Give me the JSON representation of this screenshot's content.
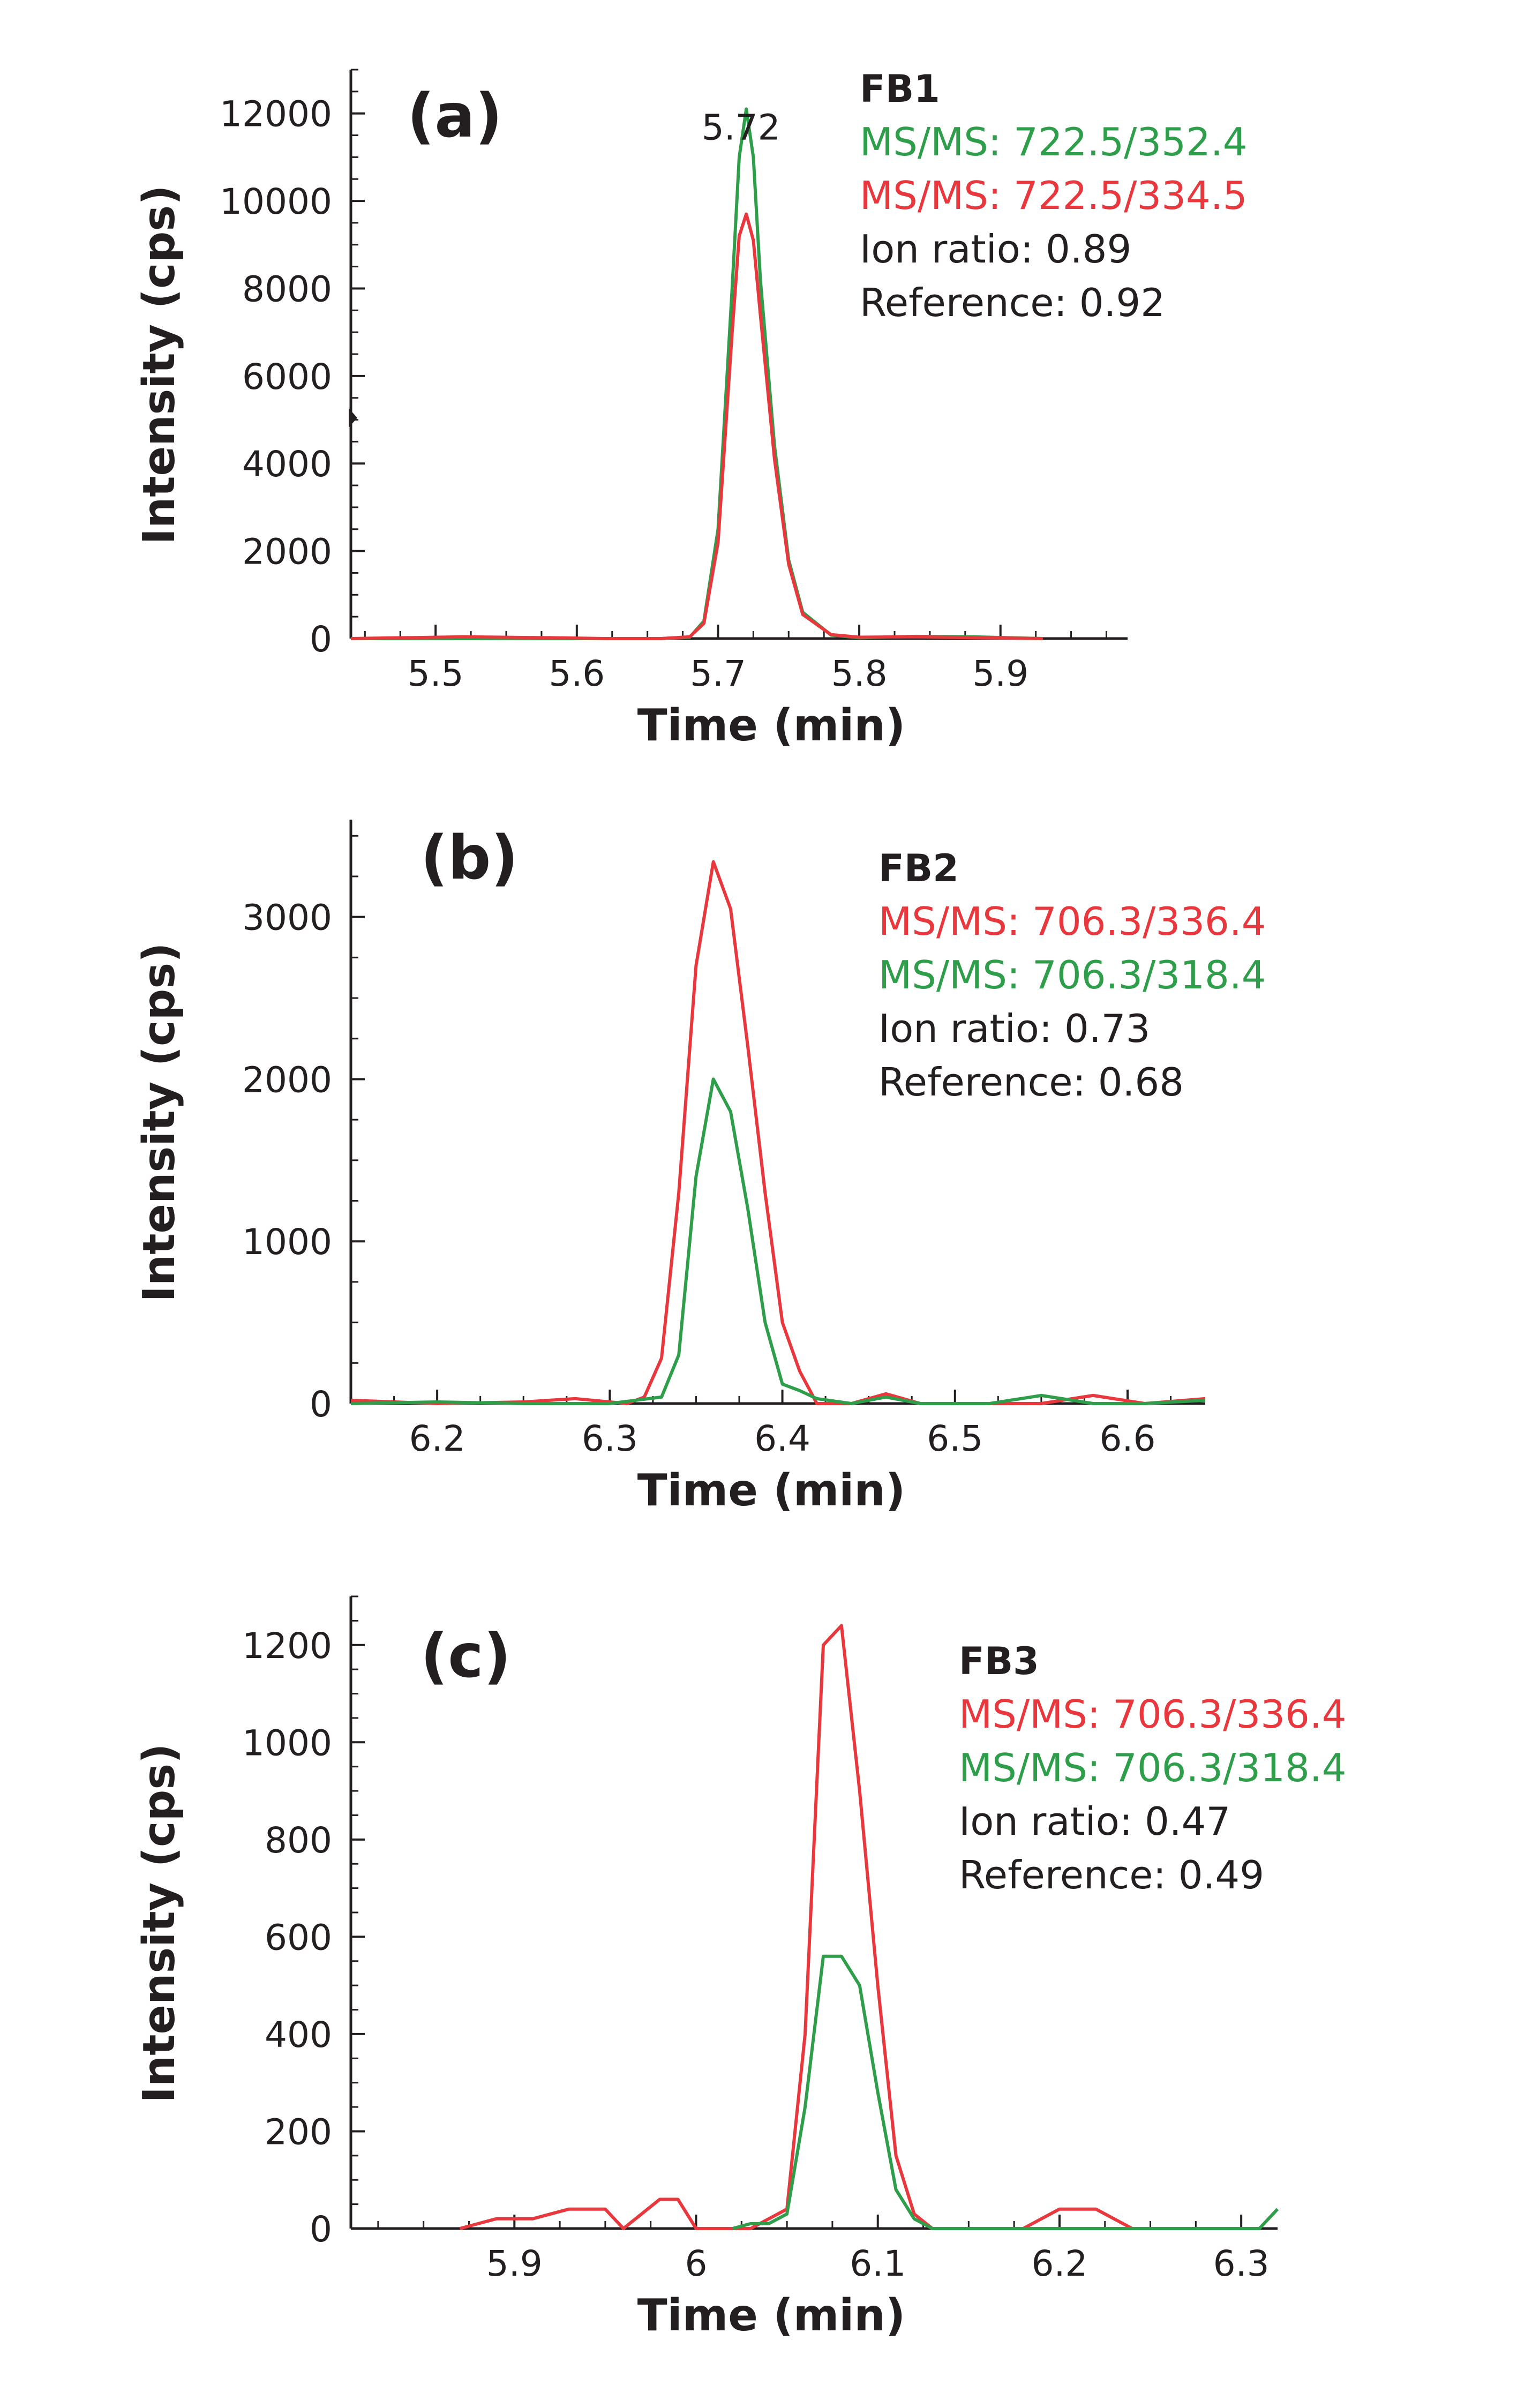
{
  "colors": {
    "green": "#2e9e4b",
    "red": "#e8383d",
    "axis": "#231f20",
    "text": "#231f20"
  },
  "chart_data": [
    {
      "type": "line",
      "panel_label": "(a)",
      "compound": "FB1",
      "xlabel": "Time (min)",
      "ylabel": "Intensity (cps)",
      "xlim": [
        5.44,
        5.99
      ],
      "ylim": [
        0,
        13000
      ],
      "xticks": [
        5.5,
        5.6,
        5.7,
        5.8,
        5.9
      ],
      "xtick_labels": [
        "5.5",
        "5.6",
        "5.7",
        "5.8",
        "5.9"
      ],
      "yticks": [
        0,
        2000,
        4000,
        6000,
        8000,
        10000,
        12000
      ],
      "ytick_labels": [
        "0",
        "2000",
        "4000",
        "6000",
        "8000",
        "10000",
        "12000"
      ],
      "peak_annotation": {
        "x": 5.72,
        "text": "5.72"
      },
      "legend": [
        "MS/MS: 722.5/352.4",
        "MS/MS: 722.5/334.5",
        "Ion ratio: 0.89",
        "Reference: 0.92"
      ],
      "series": [
        {
          "name": "MS/MS: 722.5/352.4",
          "color": "green",
          "x": [
            5.44,
            5.52,
            5.58,
            5.62,
            5.66,
            5.68,
            5.69,
            5.7,
            5.71,
            5.715,
            5.72,
            5.725,
            5.73,
            5.74,
            5.75,
            5.76,
            5.78,
            5.8,
            5.84,
            5.88,
            5.93
          ],
          "values": [
            0,
            0,
            0,
            0,
            0,
            30,
            400,
            2500,
            8000,
            11000,
            12100,
            11000,
            8200,
            4400,
            1800,
            600,
            80,
            20,
            50,
            40,
            0
          ]
        },
        {
          "name": "MS/MS: 722.5/334.5",
          "color": "red",
          "x": [
            5.44,
            5.52,
            5.58,
            5.62,
            5.66,
            5.68,
            5.69,
            5.7,
            5.71,
            5.715,
            5.72,
            5.725,
            5.73,
            5.74,
            5.75,
            5.76,
            5.78,
            5.8,
            5.84,
            5.88,
            5.93
          ],
          "values": [
            0,
            40,
            20,
            0,
            0,
            40,
            350,
            2200,
            7000,
            9200,
            9700,
            9100,
            7400,
            4100,
            1700,
            550,
            90,
            30,
            40,
            20,
            0
          ]
        }
      ]
    },
    {
      "type": "line",
      "panel_label": "(b)",
      "compound": "FB2",
      "xlabel": "Time (min)",
      "ylabel": "Intensity (cps)",
      "xlim": [
        6.15,
        6.645
      ],
      "ylim": [
        0,
        3600
      ],
      "xticks": [
        6.2,
        6.3,
        6.4,
        6.5,
        6.6
      ],
      "xtick_labels": [
        "6.2",
        "6.3",
        "6.4",
        "6.5",
        "6.6"
      ],
      "yticks": [
        0,
        1000,
        2000,
        3000
      ],
      "ytick_labels": [
        "0",
        "1000",
        "2000",
        "3000"
      ],
      "legend": [
        "MS/MS: 706.3/336.4",
        "MS/MS: 706.3/318.4",
        "Ion ratio: 0.73",
        "Reference: 0.68"
      ],
      "series": [
        {
          "name": "MS/MS: 706.3/336.4",
          "color": "red",
          "x": [
            6.15,
            6.2,
            6.25,
            6.28,
            6.31,
            6.32,
            6.33,
            6.34,
            6.35,
            6.36,
            6.37,
            6.38,
            6.39,
            6.4,
            6.41,
            6.42,
            6.44,
            6.46,
            6.48,
            6.52,
            6.55,
            6.58,
            6.61,
            6.645
          ],
          "values": [
            20,
            0,
            10,
            30,
            0,
            40,
            280,
            1300,
            2700,
            3340,
            3050,
            2200,
            1300,
            500,
            200,
            0,
            0,
            60,
            0,
            0,
            0,
            50,
            0,
            30
          ]
        },
        {
          "name": "MS/MS: 706.3/318.4",
          "color": "green",
          "x": [
            6.15,
            6.2,
            6.25,
            6.3,
            6.33,
            6.34,
            6.35,
            6.36,
            6.37,
            6.38,
            6.39,
            6.4,
            6.41,
            6.42,
            6.44,
            6.46,
            6.48,
            6.52,
            6.55,
            6.58,
            6.61,
            6.645
          ],
          "values": [
            0,
            10,
            0,
            0,
            40,
            300,
            1400,
            2000,
            1800,
            1200,
            500,
            120,
            80,
            30,
            0,
            40,
            0,
            0,
            50,
            0,
            0,
            20
          ]
        }
      ]
    },
    {
      "type": "line",
      "panel_label": "(c)",
      "compound": "FB3",
      "xlabel": "Time (min)",
      "ylabel": "Intensity (cps)",
      "xlim": [
        5.81,
        6.32
      ],
      "ylim": [
        0,
        1300
      ],
      "xticks": [
        5.9,
        6.0,
        6.1,
        6.2,
        6.3
      ],
      "xtick_labels": [
        "5.9",
        "6",
        "6.1",
        "6.2",
        "6.3"
      ],
      "yticks": [
        0,
        200,
        400,
        600,
        800,
        1000,
        1200
      ],
      "ytick_labels": [
        "0",
        "200",
        "400",
        "600",
        "800",
        "1000",
        "1200"
      ],
      "legend": [
        "MS/MS: 706.3/336.4",
        "MS/MS: 706.3/318.4",
        "Ion ratio: 0.47",
        "Reference: 0.49"
      ],
      "series": [
        {
          "name": "MS/MS: 706.3/336.4",
          "color": "red",
          "x": [
            5.87,
            5.89,
            5.91,
            5.93,
            5.95,
            5.96,
            5.98,
            5.99,
            6.0,
            6.02,
            6.03,
            6.05,
            6.06,
            6.07,
            6.08,
            6.09,
            6.1,
            6.11,
            6.12,
            6.13,
            6.18,
            6.2,
            6.22,
            6.24
          ],
          "values": [
            0,
            20,
            20,
            40,
            40,
            0,
            60,
            60,
            0,
            0,
            0,
            40,
            400,
            1200,
            1240,
            900,
            500,
            150,
            30,
            0,
            0,
            40,
            40,
            0
          ]
        },
        {
          "name": "MS/MS: 706.3/318.4",
          "color": "green",
          "x": [
            6.02,
            6.03,
            6.04,
            6.05,
            6.06,
            6.07,
            6.08,
            6.09,
            6.1,
            6.11,
            6.12,
            6.13,
            6.31,
            6.32
          ],
          "values": [
            0,
            10,
            10,
            30,
            250,
            560,
            560,
            500,
            280,
            80,
            20,
            0,
            0,
            40
          ]
        }
      ]
    }
  ]
}
